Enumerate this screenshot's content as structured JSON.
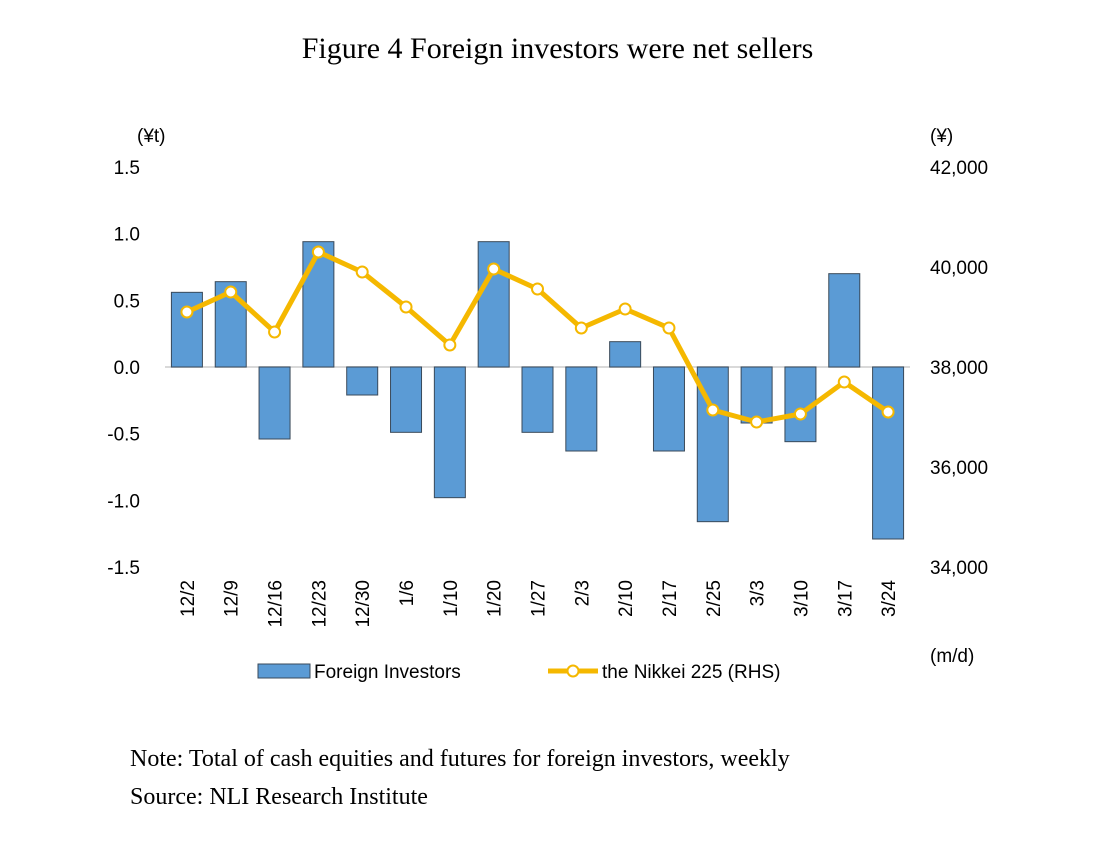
{
  "title": "Figure 4 Foreign investors were net sellers",
  "note": "Note: Total of cash equities and futures for foreign investors, weekly",
  "source": "Source: NLI Research Institute",
  "chart_data": {
    "type": "bar",
    "title": "Figure 4 Foreign investors were net sellers",
    "xlabel": "(m/d)",
    "ylabel": "(¥t)",
    "y2label": "(¥)",
    "ylim": [
      -1.5,
      1.5
    ],
    "y2lim": [
      34000,
      42000
    ],
    "yticks": [
      "1.5",
      "1.0",
      "0.5",
      "0.0",
      "-0.5",
      "-1.0",
      "-1.5"
    ],
    "y2ticks": [
      "42,000",
      "40,000",
      "38,000",
      "36,000",
      "34,000"
    ],
    "categories": [
      "12/2",
      "12/9",
      "12/16",
      "12/23",
      "12/30",
      "1/6",
      "1/10",
      "1/20",
      "1/27",
      "2/3",
      "2/10",
      "2/17",
      "2/25",
      "3/3",
      "3/10",
      "3/17",
      "3/24"
    ],
    "series": [
      {
        "name": "Foreign Investors",
        "type": "bar",
        "axis": "left",
        "color": "#5b9bd5",
        "values": [
          0.56,
          0.64,
          -0.54,
          0.94,
          -0.21,
          -0.49,
          -0.98,
          0.94,
          -0.49,
          -0.63,
          0.19,
          -0.63,
          -1.16,
          -0.42,
          -0.56,
          0.7,
          -1.29
        ]
      },
      {
        "name": "the Nikkei 225 (RHS)",
        "type": "line",
        "axis": "right",
        "color": "#f5b800",
        "values": [
          39100,
          39500,
          38700,
          40300,
          39900,
          39200,
          38440,
          39960,
          39560,
          38780,
          39160,
          38780,
          37140,
          36900,
          37060,
          37700,
          37100
        ]
      }
    ],
    "legend": "bottom",
    "grid": false
  }
}
